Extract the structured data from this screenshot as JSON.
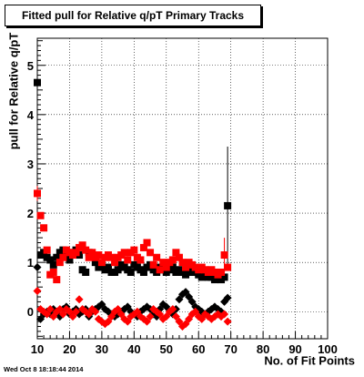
{
  "chart_data": {
    "type": "scatter",
    "title": "Fitted pull for Relative q/pT Primary Tracks",
    "xlabel": "No. of Fit Points",
    "ylabel": "pull for Relative q/pT",
    "xlim": [
      10,
      100
    ],
    "ylim": [
      -0.55,
      5.55
    ],
    "xticks": [
      10,
      20,
      30,
      40,
      50,
      60,
      70,
      80,
      90,
      100
    ],
    "yticks": [
      0,
      1,
      2,
      3,
      4,
      5
    ],
    "grid": true,
    "legend": "none",
    "series": [
      {
        "marker": "square",
        "color": "#000000",
        "x": [
          10,
          11,
          12,
          13,
          14,
          15,
          16,
          17,
          18,
          19,
          20,
          21,
          22,
          23,
          24,
          25,
          26,
          27,
          28,
          29,
          30,
          31,
          32,
          33,
          34,
          35,
          36,
          37,
          38,
          39,
          40,
          41,
          42,
          43,
          44,
          45,
          46,
          47,
          48,
          49,
          50,
          51,
          52,
          53,
          54,
          55,
          56,
          57,
          58,
          59,
          60,
          61,
          62,
          63,
          64,
          65,
          66,
          67,
          68,
          69
        ],
        "y": [
          4.65,
          1.15,
          1.2,
          1.1,
          1.05,
          0.95,
          1.1,
          1.2,
          1.25,
          1.15,
          1.05,
          1.2,
          1.25,
          1.15,
          0.85,
          0.8,
          1.2,
          1.15,
          1.0,
          0.9,
          0.95,
          0.85,
          0.9,
          0.8,
          0.8,
          0.85,
          0.95,
          0.9,
          0.85,
          0.8,
          0.95,
          0.9,
          0.85,
          0.8,
          0.9,
          0.95,
          0.85,
          0.8,
          0.9,
          0.85,
          0.8,
          0.85,
          0.9,
          0.8,
          0.85,
          0.8,
          0.75,
          0.8,
          0.85,
          0.8,
          0.75,
          0.7,
          0.75,
          0.7,
          0.7,
          0.65,
          0.7,
          0.65,
          0.7,
          2.15
        ],
        "yerr": [
          0.35,
          0.0,
          0.0,
          0.0,
          0.0,
          0.0,
          0.0,
          0.0,
          0.0,
          0.0,
          0.0,
          0.0,
          0.0,
          0.0,
          0.0,
          0.0,
          0.0,
          0.0,
          0.0,
          0.0,
          0.0,
          0.0,
          0.0,
          0.0,
          0.0,
          0.0,
          0.0,
          0.0,
          0.0,
          0.0,
          0.0,
          0.0,
          0.0,
          0.0,
          0.0,
          0.0,
          0.0,
          0.0,
          0.0,
          0.0,
          0.0,
          0.0,
          0.0,
          0.0,
          0.0,
          0.0,
          0.0,
          0.0,
          0.0,
          0.0,
          0.0,
          0.0,
          0.0,
          0.0,
          0.0,
          0.0,
          0.0,
          0.0,
          0.0,
          1.2
        ]
      },
      {
        "marker": "square",
        "color": "#ff0000",
        "x": [
          10,
          11,
          12,
          13,
          14,
          15,
          16,
          17,
          18,
          19,
          20,
          21,
          22,
          23,
          24,
          25,
          26,
          27,
          28,
          29,
          30,
          31,
          32,
          33,
          34,
          35,
          36,
          37,
          38,
          39,
          40,
          41,
          42,
          43,
          44,
          45,
          46,
          47,
          48,
          49,
          50,
          51,
          52,
          53,
          54,
          55,
          56,
          57,
          58,
          59,
          60,
          61,
          62,
          63,
          64,
          65,
          66,
          67,
          68,
          69
        ],
        "y": [
          2.4,
          1.95,
          1.7,
          1.25,
          0.75,
          0.8,
          0.65,
          1.0,
          1.1,
          1.25,
          1.2,
          1.15,
          1.2,
          1.3,
          1.35,
          1.25,
          1.1,
          1.2,
          1.1,
          1.15,
          1.0,
          1.1,
          1.15,
          1.1,
          1.0,
          1.1,
          1.15,
          1.2,
          1.05,
          1.2,
          1.25,
          1.1,
          1.05,
          1.3,
          1.4,
          1.2,
          0.95,
          1.1,
          0.85,
          1.0,
          0.9,
          1.0,
          1.05,
          1.2,
          1.1,
          1.0,
          0.9,
          1.0,
          0.95,
          0.9,
          0.85,
          0.9,
          0.85,
          0.8,
          0.85,
          0.8,
          0.75,
          0.8,
          1.15,
          0.9
        ],
        "yerr": [
          0.15,
          0.0,
          0.0,
          0.0,
          0.0,
          0.0,
          0.0,
          0.0,
          0.0,
          0.0,
          0.0,
          0.0,
          0.0,
          0.0,
          0.0,
          0.0,
          0.0,
          0.0,
          0.0,
          0.0,
          0.0,
          0.0,
          0.0,
          0.0,
          0.0,
          0.0,
          0.0,
          0.0,
          0.0,
          0.0,
          0.0,
          0.0,
          0.0,
          0.0,
          0.0,
          0.0,
          0.0,
          0.0,
          0.0,
          0.0,
          0.0,
          0.0,
          0.0,
          0.0,
          0.0,
          0.0,
          0.0,
          0.0,
          0.0,
          0.0,
          0.0,
          0.0,
          0.0,
          0.0,
          0.0,
          0.0,
          0.0,
          0.0,
          0.35,
          0.0
        ]
      },
      {
        "marker": "diamond",
        "color": "#000000",
        "x": [
          10,
          11,
          12,
          13,
          14,
          15,
          16,
          17,
          18,
          19,
          20,
          21,
          22,
          23,
          24,
          25,
          26,
          27,
          28,
          29,
          30,
          31,
          32,
          33,
          34,
          35,
          36,
          37,
          38,
          39,
          40,
          41,
          42,
          43,
          44,
          45,
          46,
          47,
          48,
          49,
          50,
          51,
          52,
          53,
          54,
          55,
          56,
          57,
          58,
          59,
          60,
          61,
          62,
          63,
          64,
          65,
          66,
          67,
          68,
          69
        ],
        "y": [
          0.9,
          -0.15,
          -0.05,
          0.0,
          -0.05,
          0.05,
          0.0,
          -0.1,
          0.05,
          0.1,
          -0.05,
          0.0,
          0.05,
          -0.05,
          0.0,
          0.05,
          -0.1,
          0.0,
          0.05,
          0.1,
          0.15,
          0.05,
          0.0,
          -0.05,
          -0.1,
          -0.05,
          0.0,
          0.05,
          0.1,
          0.0,
          -0.05,
          -0.1,
          0.0,
          0.05,
          0.1,
          0.05,
          -0.05,
          -0.1,
          0.05,
          0.15,
          0.1,
          0.0,
          -0.05,
          0.05,
          0.25,
          0.35,
          0.4,
          0.3,
          0.2,
          0.1,
          0.05,
          0.0,
          -0.05,
          0.0,
          0.05,
          0.1,
          0.05,
          0.0,
          0.2,
          0.28
        ],
        "yerr": [
          0.05,
          0.0,
          0.0,
          0.0,
          0.0,
          0.0,
          0.0,
          0.0,
          0.0,
          0.0,
          0.0,
          0.0,
          0.0,
          0.0,
          0.0,
          0.0,
          0.0,
          0.0,
          0.0,
          0.0,
          0.0,
          0.0,
          0.0,
          0.0,
          0.0,
          0.0,
          0.0,
          0.0,
          0.0,
          0.0,
          0.0,
          0.0,
          0.0,
          0.0,
          0.0,
          0.0,
          0.0,
          0.0,
          0.0,
          0.0,
          0.0,
          0.0,
          0.0,
          0.0,
          0.0,
          0.0,
          0.0,
          0.0,
          0.0,
          0.0,
          0.0,
          0.0,
          0.0,
          0.0,
          0.0,
          0.0,
          0.0,
          0.0,
          0.0,
          0.0
        ]
      },
      {
        "marker": "diamond",
        "color": "#ff0000",
        "x": [
          10,
          11,
          12,
          13,
          14,
          15,
          16,
          17,
          18,
          19,
          20,
          21,
          22,
          23,
          24,
          25,
          26,
          27,
          28,
          29,
          30,
          31,
          32,
          33,
          34,
          35,
          36,
          37,
          38,
          39,
          40,
          41,
          42,
          43,
          44,
          45,
          46,
          47,
          48,
          49,
          50,
          51,
          52,
          53,
          54,
          55,
          56,
          57,
          58,
          59,
          60,
          61,
          62,
          63,
          64,
          65,
          66,
          67,
          68,
          69
        ],
        "y": [
          0.42,
          0.05,
          0.0,
          -0.05,
          0.05,
          -0.1,
          0.0,
          0.05,
          -0.05,
          0.05,
          0.0,
          -0.1,
          0.0,
          0.25,
          0.05,
          0.0,
          -0.05,
          0.05,
          0.0,
          -0.15,
          -0.2,
          -0.25,
          -0.2,
          -0.1,
          0.0,
          0.05,
          -0.05,
          -0.15,
          -0.2,
          -0.1,
          -0.05,
          0.0,
          -0.1,
          -0.15,
          -0.2,
          -0.1,
          0.05,
          0.0,
          -0.05,
          -0.15,
          -0.1,
          0.0,
          0.05,
          -0.1,
          -0.2,
          -0.3,
          -0.25,
          -0.15,
          -0.05,
          0.0,
          -0.1,
          -0.15,
          -0.05,
          -0.1,
          -0.15,
          -0.1,
          -0.05,
          -0.1,
          -0.05,
          -0.2
        ],
        "yerr": [
          0.05,
          0.0,
          0.0,
          0.0,
          0.0,
          0.0,
          0.0,
          0.0,
          0.0,
          0.0,
          0.0,
          0.0,
          0.0,
          0.0,
          0.0,
          0.0,
          0.0,
          0.0,
          0.0,
          0.0,
          0.0,
          0.0,
          0.0,
          0.0,
          0.0,
          0.0,
          0.0,
          0.0,
          0.0,
          0.0,
          0.0,
          0.0,
          0.0,
          0.0,
          0.0,
          0.0,
          0.0,
          0.0,
          0.0,
          0.0,
          0.0,
          0.0,
          0.0,
          0.0,
          0.0,
          0.0,
          0.0,
          0.0,
          0.0,
          0.0,
          0.0,
          0.0,
          0.0,
          0.0,
          0.0,
          0.0,
          0.0,
          0.0,
          0.0,
          0.0
        ]
      }
    ]
  },
  "footer": {
    "timestamp": "Wed Oct  8 18:18:44 2014"
  }
}
